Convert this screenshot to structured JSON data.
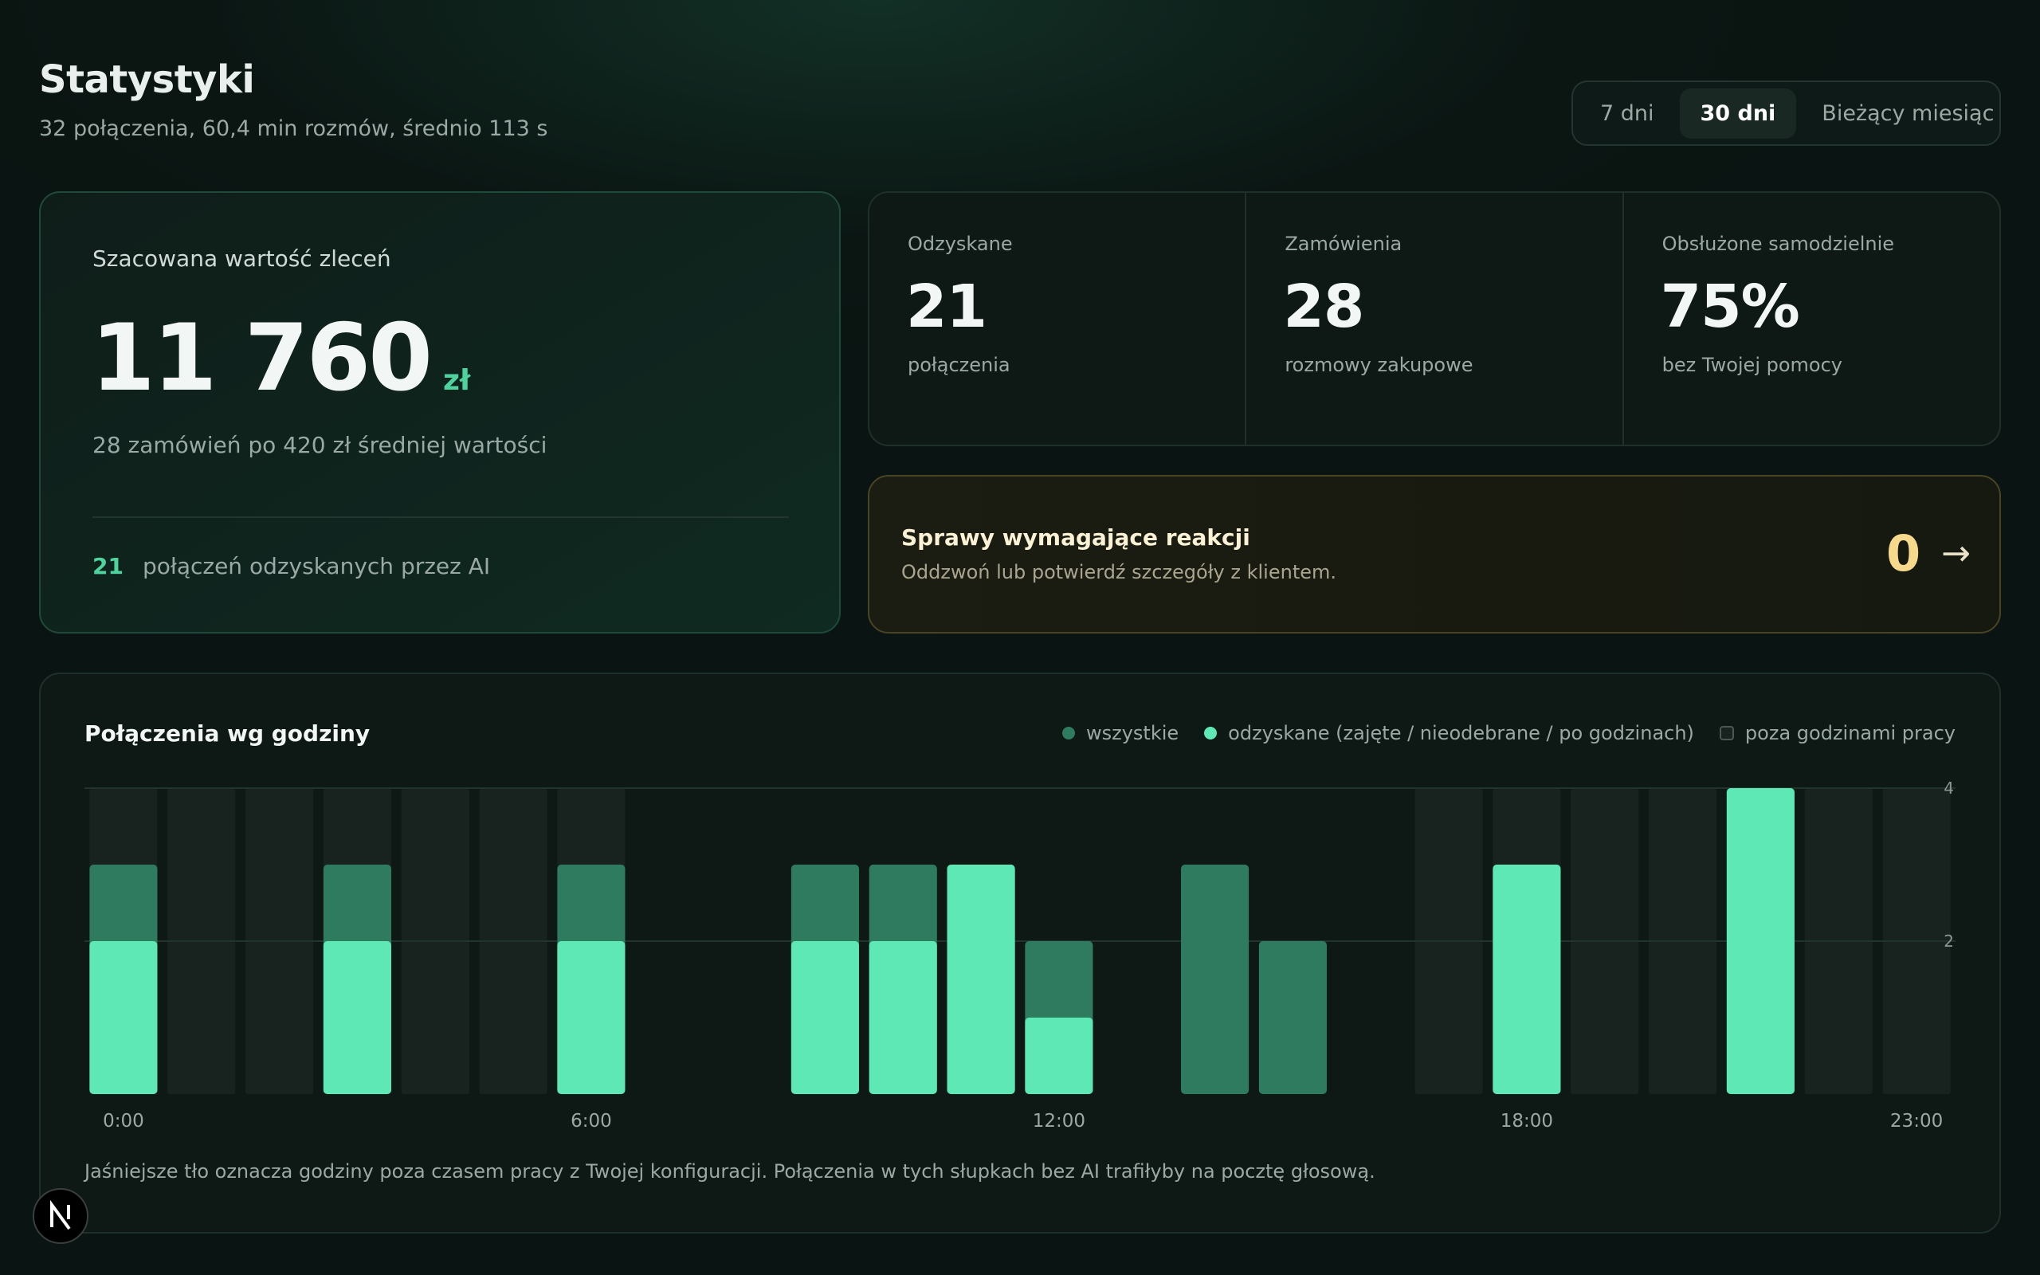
{
  "header": {
    "title": "Statystyki",
    "subtitle": "32 połączenia, 60,4 min rozmów, średnio 113 s"
  },
  "tabs": {
    "items": [
      "7 dni",
      "30 dni",
      "Bieżący miesiąc"
    ],
    "active": 1
  },
  "value_card": {
    "label": "Szacowana wartość zleceń",
    "value": "11 760",
    "unit": "zł",
    "description": "28 zamówień po 420 zł średniej wartości",
    "footer_count": "21",
    "footer_text": "połączeń odzyskanych przez AI"
  },
  "stats": [
    {
      "label": "Odzyskane",
      "value": "21",
      "caption": "połączenia"
    },
    {
      "label": "Zamówienia",
      "value": "28",
      "caption": "rozmowy zakupowe"
    },
    {
      "label": "Obsłużone samodzielnie",
      "value": "75%",
      "caption": "bez Twojej pomocy"
    }
  ],
  "alert": {
    "title": "Sprawy wymagające reakcji",
    "text": "Oddzwoń lub potwierdź szczegóły z klientem.",
    "count": "0",
    "action": "→"
  },
  "chart_data": {
    "type": "bar",
    "title": "Połączenia wg godziny",
    "categories": [
      "0:00",
      null,
      null,
      null,
      null,
      null,
      "6:00",
      null,
      null,
      null,
      null,
      null,
      "12:00",
      null,
      null,
      null,
      null,
      null,
      "18:00",
      null,
      null,
      null,
      null,
      "23:00"
    ],
    "series": [
      {
        "name": "wszystkie",
        "color": "#2f7b5f",
        "values": [
          3,
          0,
          0,
          3,
          0,
          0,
          3,
          0,
          0,
          3,
          3,
          3,
          2,
          0,
          3,
          2,
          0,
          0,
          3,
          0,
          0,
          4,
          0,
          0
        ]
      },
      {
        "name": "odzyskane (zajęte / nieodebrane / po godzinach)",
        "color": "#5de8b5",
        "values": [
          2,
          0,
          0,
          2,
          0,
          0,
          2,
          0,
          0,
          2,
          2,
          3,
          1,
          0,
          0,
          0,
          0,
          0,
          3,
          0,
          0,
          4,
          0,
          0
        ]
      }
    ],
    "off_hours": {
      "name": "poza godzinami pracy",
      "color": "#18221f",
      "hours": [
        true,
        true,
        true,
        true,
        true,
        true,
        true,
        false,
        false,
        false,
        false,
        false,
        false,
        false,
        false,
        false,
        false,
        true,
        true,
        true,
        true,
        true,
        true,
        true
      ]
    },
    "ylim": [
      0,
      4
    ],
    "yticks": [
      2,
      4
    ],
    "grid": true,
    "legend": "top-right",
    "note": "Jaśniejsze tło oznacza godziny poza czasem pracy z Twojej konfiguracji. Połączenia w tych słupkach bez AI trafiłyby na pocztę głosową."
  }
}
